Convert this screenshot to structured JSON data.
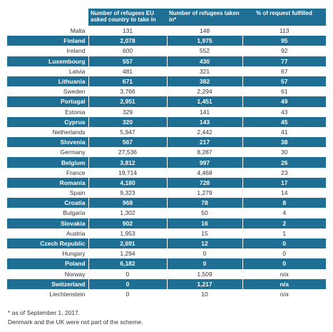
{
  "chart_data": {
    "type": "table",
    "columns": [
      "",
      "Number of refugees EU asked country to take in",
      "Number of refugees taken in*",
      "% of request fulfilled"
    ],
    "rows": [
      [
        "Malta",
        "131",
        "148",
        "113"
      ],
      [
        "Finland",
        "2,078",
        "1,975",
        "95"
      ],
      [
        "Ireland",
        "600",
        "552",
        "92"
      ],
      [
        "Luxembourg",
        "557",
        "430",
        "77"
      ],
      [
        "Latvia",
        "481",
        "321",
        "67"
      ],
      [
        "Lithuania",
        "671",
        "382",
        "57"
      ],
      [
        "Sweden",
        "3,766",
        "2,294",
        "61"
      ],
      [
        "Portugal",
        "2,951",
        "1,451",
        "49"
      ],
      [
        "Estonia",
        "329",
        "141",
        "43"
      ],
      [
        "Cyprus",
        "320",
        "143",
        "45"
      ],
      [
        "Netherlands",
        "5,947",
        "2,442",
        "41"
      ],
      [
        "Slovenia",
        "567",
        "217",
        "38"
      ],
      [
        "Germany",
        "27,536",
        "8,287",
        "30"
      ],
      [
        "Belgium",
        "3,812",
        "997",
        "26"
      ],
      [
        "France",
        "19,714",
        "4,468",
        "23"
      ],
      [
        "Romania",
        "4,180",
        "728",
        "17"
      ],
      [
        "Spain",
        "9,323",
        "1,279",
        "14"
      ],
      [
        "Croatia",
        "968",
        "78",
        "8"
      ],
      [
        "Bulgaria",
        "1,302",
        "50",
        "4"
      ],
      [
        "Slovakia",
        "902",
        "16",
        "2"
      ],
      [
        "Austria",
        "1,953",
        "15",
        "1"
      ],
      [
        "Czech Republic",
        "2,691",
        "12",
        "0"
      ],
      [
        "Hungary",
        "1,294",
        "0",
        "0"
      ],
      [
        "Poland",
        "6,182",
        "0",
        "0"
      ],
      [
        "Norway",
        "0",
        "1,509",
        "n/a"
      ],
      [
        "Switzerland",
        "0",
        "1,217",
        "n/a"
      ],
      [
        "Liechtenstein",
        "0",
        "10",
        "n/a"
      ]
    ],
    "colors": {
      "band": "#1f6f95",
      "text": "#333333"
    }
  },
  "notes": {
    "line1": "* as of September 1, 2017.",
    "line2": "Denmark and the UK were not part of the scheme."
  }
}
